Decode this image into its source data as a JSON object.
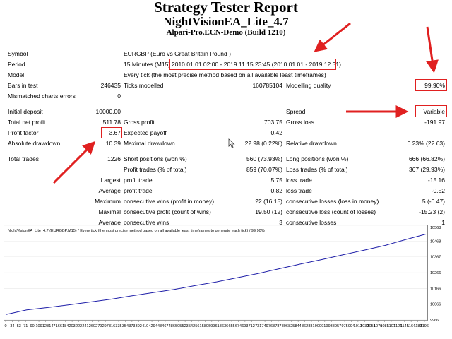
{
  "header": {
    "title": "Strategy Tester Report",
    "ea_name": "NightVisionEA_Lite_4.7",
    "server": "Alpari-Pro.ECN-Demo (Build 1210)"
  },
  "info": {
    "symbol_label": "Symbol",
    "symbol_value": "EURGBP (Euro vs Great Britain Pound )",
    "period_label": "Period",
    "period_tf": "15 Minutes (M15)",
    "period_range": "2010.01.01 02:00 - 2019.11.15 23:45 (2010.01.01 - 2019.12.31)",
    "model_label": "Model",
    "model_value": "Every tick (the most precise method based on all available least timeframes)",
    "bars_label": "Bars in test",
    "bars_value": "246435",
    "ticks_label": "Ticks modelled",
    "ticks_value": "160785104",
    "quality_label": "Modelling quality",
    "quality_value": "99.90%",
    "mismatch_label": "Mismatched charts errors",
    "mismatch_value": "0"
  },
  "stats": {
    "initial_deposit_label": "Initial deposit",
    "initial_deposit_value": "10000.00",
    "spread_label": "Spread",
    "spread_value": "Variable",
    "net_profit_label": "Total net profit",
    "net_profit_value": "511.78",
    "gross_profit_label": "Gross profit",
    "gross_profit_value": "703.75",
    "gross_loss_label": "Gross loss",
    "gross_loss_value": "-191.97",
    "profit_factor_label": "Profit factor",
    "profit_factor_value": "3.67",
    "expected_payoff_label": "Expected payoff",
    "expected_payoff_value": "0.42",
    "abs_dd_label": "Absolute drawdown",
    "abs_dd_value": "10.39",
    "max_dd_label": "Maximal drawdown",
    "max_dd_value": "22.98 (0.22%)",
    "rel_dd_label": "Relative drawdown",
    "rel_dd_value": "0.23% (22.63)",
    "total_trades_label": "Total trades",
    "total_trades_value": "1226",
    "short_label": "Short positions (won %)",
    "short_value": "560 (73.93%)",
    "long_label": "Long positions (won %)",
    "long_value": "666 (66.82%)",
    "profit_trades_label": "Profit trades (% of total)",
    "profit_trades_value": "859 (70.07%)",
    "loss_trades_label": "Loss trades (% of total)",
    "loss_trades_value": "367 (29.93%)",
    "largest_label": "Largest",
    "largest_profit_label": "profit trade",
    "largest_profit_value": "5.75",
    "largest_loss_label": "loss trade",
    "largest_loss_value": "-15.16",
    "average_label": "Average",
    "average_profit_label": "profit trade",
    "average_profit_value": "0.82",
    "average_loss_label": "loss trade",
    "average_loss_value": "-0.52",
    "maximum_label": "Maximum",
    "max_wins_label": "consecutive wins (profit in money)",
    "max_wins_value": "22 (16.15)",
    "max_losses_label": "consecutive losses (loss in money)",
    "max_losses_value": "5 (-0.47)",
    "maximal_label": "Maximal",
    "maximal_wins_label": "consecutive profit (count of wins)",
    "maximal_wins_value": "19.50 (12)",
    "maximal_losses_label": "consecutive loss (count of losses)",
    "maximal_losses_value": "-15.23 (2)",
    "average2_label": "Average",
    "avg_wins_label": "consecutive wins",
    "avg_wins_value": "3",
    "avg_losses_label": "consecutive losses",
    "avg_losses_value": "1"
  },
  "colors": {
    "highlight": "#e02020",
    "arrow": "#e02020",
    "balance_line": "#1e1ea8"
  },
  "chart_data": {
    "type": "line",
    "title": "NightVisionEA_Lite_4.7 (EURGBP,M15) / Every tick (the most precise method based on all available least timeframes to generate each tick) / 99.90%",
    "x_ticks": [
      "0",
      "34",
      "53",
      "71",
      "90",
      "109",
      "128",
      "147",
      "166",
      "184",
      "203",
      "222",
      "241",
      "260",
      "279",
      "297",
      "316",
      "335",
      "354",
      "373",
      "392",
      "410",
      "429",
      "448",
      "467",
      "486",
      "505",
      "523",
      "542",
      "561",
      "580",
      "599",
      "618",
      "636",
      "655",
      "674",
      "693",
      "712",
      "731",
      "749",
      "768",
      "787",
      "806",
      "825",
      "844",
      "862",
      "881",
      "900",
      "919",
      "938",
      "957",
      "975",
      "994",
      "1013",
      "1032",
      "1051",
      "1070",
      "1088",
      "1107",
      "1126",
      "1145",
      "1164",
      "1183",
      "1196"
    ],
    "y_ticks": [
      "10568",
      "10468",
      "10367",
      "10266",
      "10166",
      "10066",
      "9966"
    ],
    "ylim": [
      9966,
      10568
    ],
    "series": [
      {
        "x": [
          0,
          60,
          120,
          180,
          240,
          300,
          360,
          420,
          480,
          540,
          600,
          660,
          720,
          780,
          840,
          900,
          960,
          1020,
          1080,
          1140,
          1196
        ],
        "y": [
          10000,
          10030,
          10045,
          10062,
          10080,
          10098,
          10120,
          10140,
          10160,
          10185,
          10208,
          10235,
          10262,
          10292,
          10322,
          10350,
          10380,
          10410,
          10440,
          10478,
          10512
        ]
      }
    ]
  }
}
